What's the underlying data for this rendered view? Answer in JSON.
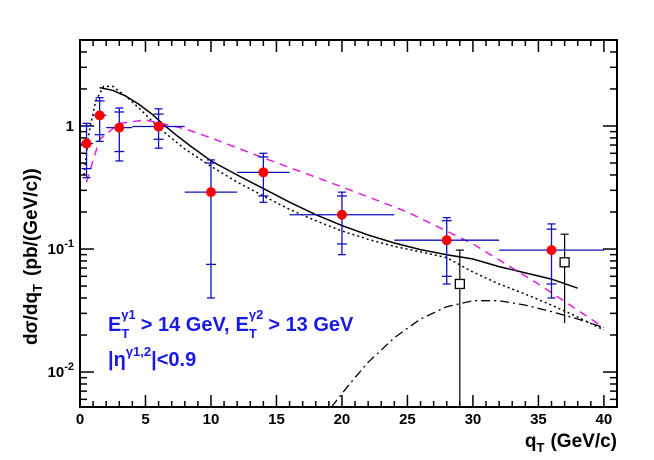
{
  "chart_data": {
    "type": "scatter",
    "xlabel": "q",
    "xlabel_sub": "T",
    "xlabel_unit": "(GeV/c)",
    "ylabel_main": "dσ/dq",
    "ylabel_sub": "T",
    "ylabel_unit": "(pb/(GeV/c))",
    "xlim": [
      0,
      41
    ],
    "ylim": [
      0.0052,
      5.0
    ],
    "yscale": "log",
    "x_ticks": [
      0,
      5,
      10,
      15,
      20,
      25,
      30,
      35,
      40
    ],
    "x_tick_labels": [
      "0",
      "5",
      "10",
      "15",
      "20",
      "25",
      "30",
      "35",
      "40"
    ],
    "y_ticks": [
      {
        "value": 0.01,
        "base": "10",
        "exp": "-2"
      },
      {
        "value": 0.1,
        "base": "10",
        "exp": "-1"
      },
      {
        "value": 1,
        "base": "1",
        "exp": ""
      }
    ],
    "annotations": {
      "cut1": {
        "E": "E",
        "T": "T",
        "g1": "γ1",
        "text": "> 14 GeV,"
      },
      "cut2": {
        "E": "E",
        "T": "T",
        "g2": "γ2",
        "text": "> 13 GeV"
      },
      "eta": {
        "open": "|η",
        "sup": "γ1,2",
        "close": "|<0.9"
      }
    },
    "colors": {
      "data": "#ff0000",
      "errors": "#1111bb",
      "annotation": "#1a1ae6",
      "dashed": "#e020e0",
      "curve": "#000000",
      "axis": "#000000"
    },
    "series": [
      {
        "name": "data",
        "marker": "circle",
        "points": [
          {
            "x": 0.5,
            "y": 0.72,
            "xerr": 0.5,
            "ystat": [
              0.45,
              1.0
            ],
            "ysys": [
              0.38,
              1.05
            ]
          },
          {
            "x": 1.5,
            "y": 1.22,
            "xerr": 0.5,
            "ystat": [
              0.85,
              1.6
            ],
            "ysys": [
              0.75,
              1.7
            ]
          },
          {
            "x": 3.0,
            "y": 0.97,
            "xerr": 1.0,
            "ystat": [
              0.62,
              1.3
            ],
            "ysys": [
              0.52,
              1.4
            ]
          },
          {
            "x": 6.0,
            "y": 0.99,
            "xerr": 2.0,
            "ystat": [
              0.78,
              1.25
            ],
            "ysys": [
              0.66,
              1.38
            ]
          },
          {
            "x": 10.0,
            "y": 0.29,
            "xerr": 2.0,
            "ystat": [
              0.075,
              0.5
            ],
            "ysys": [
              0.04,
              0.53
            ]
          },
          {
            "x": 14.0,
            "y": 0.42,
            "xerr": 2.0,
            "ystat": [
              0.27,
              0.56
            ],
            "ysys": [
              0.24,
              0.6
            ]
          },
          {
            "x": 20.0,
            "y": 0.19,
            "xerr": 4.0,
            "ystat": [
              0.11,
              0.27
            ],
            "ysys": [
              0.09,
              0.29
            ]
          },
          {
            "x": 28.0,
            "y": 0.118,
            "xerr": 4.0,
            "ystat": [
              0.06,
              0.17
            ],
            "ysys": [
              0.052,
              0.18
            ]
          },
          {
            "x": 36.0,
            "y": 0.098,
            "xerr": 4.0,
            "ystat": [
              0.052,
              0.145
            ],
            "ysys": [
              0.04,
              0.16
            ]
          }
        ]
      },
      {
        "name": "open squares",
        "marker": "square",
        "points": [
          {
            "x": 29.0,
            "y": 0.052,
            "yerr": [
              0.0052,
              0.098
            ]
          },
          {
            "x": 37.0,
            "y": 0.078,
            "yerr": [
              0.025,
              0.132
            ]
          }
        ]
      },
      {
        "name": "solid curve",
        "style": "solid",
        "x": [
          1.5,
          2.5,
          3.5,
          4.5,
          5.5,
          6.5,
          7.5,
          8.5,
          10,
          12,
          14,
          16,
          18,
          20,
          22,
          24,
          26,
          28,
          30,
          32,
          34,
          36,
          38
        ],
        "y": [
          2.05,
          1.95,
          1.75,
          1.5,
          1.25,
          1.0,
          0.82,
          0.68,
          0.52,
          0.4,
          0.31,
          0.24,
          0.19,
          0.155,
          0.13,
          0.112,
          0.099,
          0.09,
          0.083,
          0.072,
          0.064,
          0.057,
          0.048
        ]
      },
      {
        "name": "dotted curve",
        "style": "dotted",
        "x": [
          0.3,
          0.7,
          1.2,
          1.8,
          2.5,
          3.5,
          4.5,
          5.5,
          6.5,
          8,
          10,
          12,
          14,
          16,
          18,
          20,
          22,
          24,
          26,
          28,
          30,
          32,
          34,
          36,
          38,
          40
        ],
        "y": [
          0.4,
          0.9,
          1.6,
          2.1,
          2.1,
          1.75,
          1.4,
          1.1,
          0.88,
          0.65,
          0.47,
          0.35,
          0.27,
          0.21,
          0.17,
          0.14,
          0.12,
          0.105,
          0.095,
          0.085,
          0.065,
          0.052,
          0.043,
          0.035,
          0.028,
          0.022
        ]
      },
      {
        "name": "dashed curve",
        "style": "dashed",
        "x": [
          0.5,
          1.5,
          3,
          5,
          8,
          10,
          14,
          20,
          25,
          30,
          35,
          40
        ],
        "y": [
          0.35,
          0.78,
          1.05,
          1.12,
          0.95,
          0.8,
          0.55,
          0.32,
          0.2,
          0.11,
          0.052,
          0.023
        ]
      },
      {
        "name": "dash-dot curve",
        "style": "dashdot",
        "x": [
          19.2,
          20.5,
          22,
          24,
          26,
          28,
          30,
          32,
          34,
          36,
          38,
          40
        ],
        "y": [
          0.0052,
          0.0078,
          0.012,
          0.019,
          0.027,
          0.034,
          0.038,
          0.038,
          0.035,
          0.031,
          0.027,
          0.023
        ]
      }
    ]
  }
}
